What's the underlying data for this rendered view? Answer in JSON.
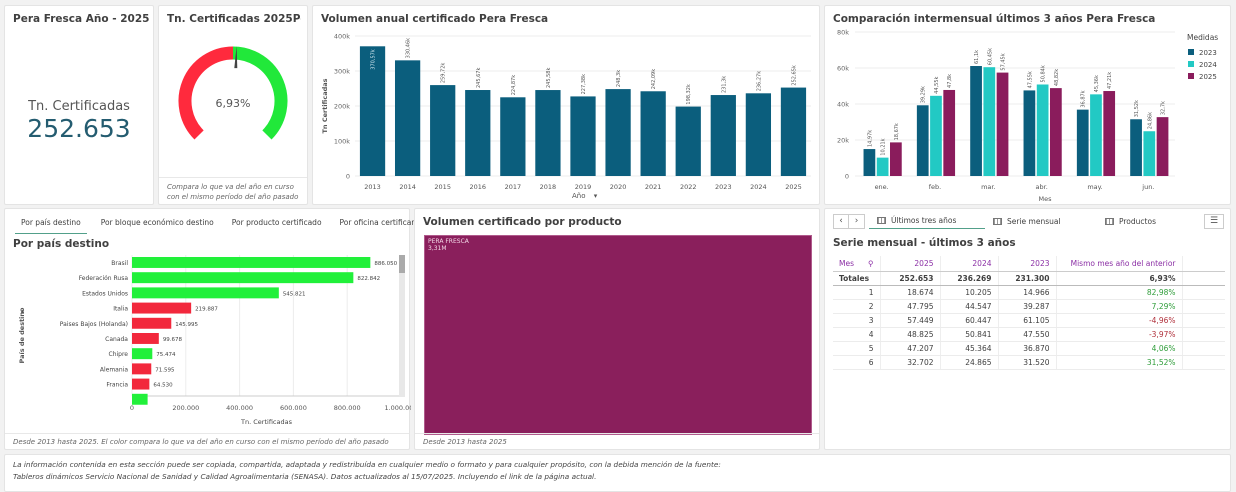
{
  "kpi": {
    "title": "Pera Fresca Año - 2025",
    "label": "Tn. Certificadas",
    "value": "252.653"
  },
  "gauge": {
    "title": "Tn. Certificadas 2025Pera Fre...",
    "value_label": "6,93%",
    "value_pct": 6.93,
    "note": "Compara lo que va del año en curso con el mismo período del año pasado",
    "neg_color": "#ff2a3d",
    "pos_color": "#21e83a"
  },
  "annual": {
    "title": "Volumen anual certificado Pera Fresca",
    "dimension_label": "Año",
    "chart_data": {
      "type": "bar",
      "title": "Volumen anual certificado Pera Fresca",
      "xlabel": "Año",
      "ylabel": "Tn Certificadas",
      "categories": [
        "2013",
        "2014",
        "2015",
        "2016",
        "2017",
        "2018",
        "2019",
        "2020",
        "2021",
        "2022",
        "2023",
        "2024",
        "2025"
      ],
      "values": [
        370570,
        330460,
        259720,
        245670,
        224870,
        245580,
        227380,
        248300,
        242090,
        198320,
        231300,
        236270,
        252650
      ],
      "labels": [
        "370,57k",
        "330,46k",
        "259,72k",
        "245,67k",
        "224,87k",
        "245,58k",
        "227,38k",
        "248,3k",
        "242,09k",
        "198,32k",
        "231,3k",
        "236,27k",
        "252,65k"
      ],
      "yticks": [
        "0",
        "100k",
        "200k",
        "300k",
        "400k"
      ],
      "ylim": [
        0,
        400000
      ],
      "color": "#0b5e7d"
    }
  },
  "monthly": {
    "title": "Comparación intermensual últimos 3 años Pera Fresca",
    "chart_data": {
      "type": "bar",
      "title": "Comparación intermensual últimos 3 años Pera Fresca",
      "xlabel": "Mes",
      "ylabel": "",
      "categories": [
        "ene.",
        "feb.",
        "mar.",
        "abr.",
        "may.",
        "jun."
      ],
      "yticks": [
        "0",
        "20k",
        "40k",
        "60k",
        "80k"
      ],
      "ylim": [
        0,
        80000
      ],
      "legend_title": "Medidas",
      "legend_position": "right",
      "series": [
        {
          "name": "2023",
          "color": "#0b5e7d",
          "values": [
            14966,
            39287,
            61105,
            47550,
            36870,
            31520
          ],
          "labels": [
            "14,97k",
            "39,29k",
            "61,1k",
            "47,55k",
            "36,87k",
            "31,52k"
          ]
        },
        {
          "name": "2024",
          "color": "#22c9c4",
          "values": [
            10205,
            44547,
            60447,
            50841,
            45364,
            24865
          ],
          "labels": [
            "10,21k",
            "44,55k",
            "60,45k",
            "50,84k",
            "45,36k",
            "24,86k"
          ]
        },
        {
          "name": "2025",
          "color": "#8a1c5c",
          "values": [
            18674,
            47795,
            57449,
            48825,
            47207,
            32702
          ],
          "labels": [
            "18,67k",
            "47,8k",
            "57,45k",
            "48,82k",
            "47,21k",
            "32,7k"
          ]
        }
      ]
    }
  },
  "destinos": {
    "tabs": [
      "Por país destino",
      "Por bloque económico destino",
      "Por producto certificado",
      "Por oficina certificante"
    ],
    "title": "Por país destino",
    "note": "Desde 2013 hasta 2025. El color compara lo que va del año en curso con el mismo período del año pasado",
    "chart_data": {
      "type": "bar",
      "orientation": "horizontal",
      "xlabel": "Tn. Certificadas",
      "ylabel": "País de destino",
      "categories": [
        "Brasil",
        "Federación Rusa",
        "Estados Unidos",
        "Italia",
        "Paises Bajos (Holanda)",
        "Canada",
        "Chipre",
        "Alemania",
        "Francia",
        ""
      ],
      "values": [
        886050,
        822842,
        545821,
        219887,
        145995,
        99678,
        75474,
        71595,
        64530,
        58000
      ],
      "labels": [
        "886.050",
        "822.842",
        "545.821",
        "219.887",
        "145.995",
        "99.678",
        "75.474",
        "71.595",
        "64.530",
        ""
      ],
      "status": [
        "up",
        "up",
        "up",
        "down",
        "down",
        "down",
        "up",
        "down",
        "down",
        "up"
      ],
      "xticks": [
        "0",
        "200.000",
        "400.000",
        "600.000",
        "800.000",
        "1.000.000"
      ],
      "xlim": [
        0,
        1000000
      ],
      "up_color": "#21f03a",
      "down_color": "#f2283c"
    }
  },
  "producto": {
    "title": "Volumen certificado por producto",
    "note": "Desde 2013 hasta 2025",
    "chart_data": {
      "type": "treemap",
      "items": [
        {
          "name": "PERA FRESCA",
          "value_label": "3,31M",
          "color": "#8a1f5c"
        }
      ]
    }
  },
  "tabla": {
    "tabs": [
      "Últimos tres años",
      "Serie mensual",
      "Productos"
    ],
    "title": "Serie mensual - últimos 3 años",
    "headers": [
      "Mes",
      "2025",
      "2024",
      "2023",
      "Mismo mes año del anterior"
    ],
    "totals": [
      "Totales",
      "252.653",
      "236.269",
      "231.300",
      "6,93%"
    ],
    "rows": [
      [
        "1",
        "18.674",
        "10.205",
        "14.966",
        "82,98%"
      ],
      [
        "2",
        "47.795",
        "44.547",
        "39.287",
        "7,29%"
      ],
      [
        "3",
        "57.449",
        "60.447",
        "61.105",
        "-4,96%"
      ],
      [
        "4",
        "48.825",
        "50.841",
        "47.550",
        "-3,97%"
      ],
      [
        "5",
        "47.207",
        "45.364",
        "36.870",
        "4,06%"
      ],
      [
        "6",
        "32.702",
        "24.865",
        "31.520",
        "31,52%"
      ]
    ]
  },
  "footer": {
    "line1": "La información contenida en esta sección puede ser copiada, compartida, adaptada y redistribuída en cualquier medio o formato y para cualquier propósito, con la debida mención de la fuente:",
    "line2": "Tableros dinámicos Servicio Nacional de Sanidad y Calidad Agroalimentaria (SENASA). Datos actualizados al 15/07/2025. Incluyendo el link de la página actual."
  }
}
